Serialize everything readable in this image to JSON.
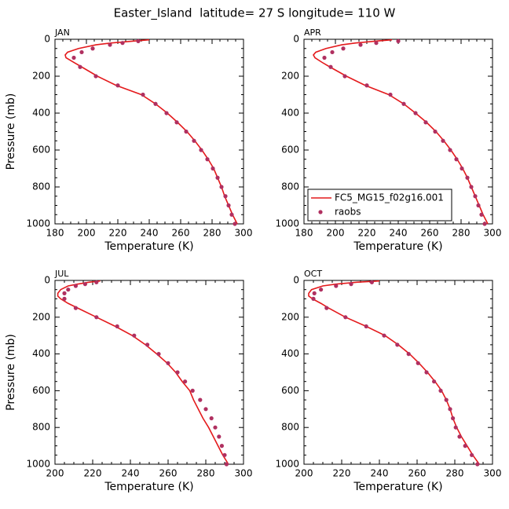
{
  "title": "Easter_Island  latitude= 27 S longitude= 110 W",
  "chart_data": [
    {
      "type": "line",
      "label": "JAN",
      "xlabel": "Temperature (K)",
      "ylabel": "Pressure (mb)",
      "xlim": [
        180,
        300
      ],
      "xticks": [
        180,
        200,
        220,
        240,
        260,
        280,
        300
      ],
      "ylim": [
        0,
        1000
      ],
      "y_reversed": true,
      "yticks": [
        0,
        200,
        400,
        600,
        800,
        1000
      ],
      "series": [
        {
          "color": "#e41a1c",
          "style": "line",
          "x": [
            240,
            230,
            216,
            206,
            195,
            188,
            186.5,
            187,
            192,
            197,
            207,
            219,
            235,
            244,
            251.5,
            258,
            264,
            269,
            273.5,
            277.5,
            281,
            283.5,
            286,
            288,
            290.5,
            293,
            296
          ],
          "y": [
            3,
            10,
            20,
            30,
            50,
            70,
            85,
            100,
            125,
            150,
            200,
            250,
            300,
            350,
            400,
            450,
            500,
            550,
            600,
            650,
            700,
            750,
            800,
            850,
            900,
            950,
            1000
          ]
        },
        {
          "color": "#b03060",
          "style": "markers",
          "x": [
            233,
            223,
            215,
            204,
            197,
            192,
            196,
            206,
            220,
            236,
            244,
            251,
            257.5,
            263.5,
            268.5,
            273,
            277,
            280.5,
            283.5,
            286,
            288.5,
            290.5,
            292.5,
            294.5
          ],
          "y": [
            10,
            20,
            30,
            50,
            70,
            100,
            150,
            200,
            250,
            300,
            350,
            400,
            450,
            500,
            550,
            600,
            650,
            700,
            750,
            800,
            850,
            900,
            950,
            1000
          ]
        }
      ]
    },
    {
      "type": "line",
      "label": "APR",
      "xlabel": "Temperature (K)",
      "xlim": [
        180,
        300
      ],
      "xticks": [
        180,
        200,
        220,
        240,
        260,
        280,
        300
      ],
      "ylim": [
        0,
        1000
      ],
      "y_reversed": true,
      "yticks": [
        0,
        200,
        400,
        600,
        800,
        1000
      ],
      "legend": "lower left",
      "series": [
        {
          "name": "FC5_MG15_f02g16.001",
          "color": "#e41a1c",
          "style": "line",
          "x": [
            236,
            226,
            213,
            204,
            194,
            187.5,
            186,
            187,
            191.5,
            196.5,
            207,
            219,
            234,
            243.5,
            251,
            258,
            264,
            269,
            273.5,
            277.5,
            281,
            284,
            286.5,
            289,
            291.5,
            294,
            297
          ],
          "y": [
            3,
            10,
            20,
            30,
            50,
            70,
            85,
            100,
            125,
            150,
            200,
            250,
            300,
            350,
            400,
            450,
            500,
            550,
            600,
            650,
            700,
            750,
            800,
            850,
            900,
            950,
            1000
          ]
        },
        {
          "name": "raobs",
          "color": "#b03060",
          "style": "markers",
          "x": [
            240,
            226,
            216,
            205,
            198,
            193,
            197,
            206,
            220,
            235,
            243.5,
            251,
            257.5,
            263.5,
            268.5,
            273,
            277,
            280.5,
            284,
            286.5,
            289,
            291,
            293,
            295
          ],
          "y": [
            10,
            20,
            30,
            50,
            70,
            100,
            150,
            200,
            250,
            300,
            350,
            400,
            450,
            500,
            550,
            600,
            650,
            700,
            750,
            800,
            850,
            900,
            950,
            1000
          ]
        }
      ]
    },
    {
      "type": "line",
      "label": "JUL",
      "xlabel": "Temperature (K)",
      "ylabel": "Pressure (mb)",
      "xlim": [
        200,
        300
      ],
      "xticks": [
        200,
        220,
        240,
        260,
        280,
        300
      ],
      "ylim": [
        0,
        1000
      ],
      "y_reversed": true,
      "yticks": [
        0,
        200,
        400,
        600,
        800,
        1000
      ],
      "series": [
        {
          "color": "#e41a1c",
          "style": "line",
          "x": [
            224,
            218,
            212,
            207,
            203,
            201.5,
            201.5,
            203,
            207,
            212,
            222,
            232,
            241,
            248,
            254,
            259.5,
            264,
            267.5,
            271.5,
            273.5,
            276,
            278.5,
            281.5,
            284,
            286.5,
            289,
            292
          ],
          "y": [
            3,
            10,
            20,
            30,
            50,
            70,
            85,
            100,
            125,
            150,
            200,
            250,
            300,
            350,
            400,
            450,
            500,
            550,
            600,
            650,
            700,
            750,
            800,
            850,
            900,
            950,
            1000
          ]
        },
        {
          "color": "#b03060",
          "style": "markers",
          "x": [
            222,
            216,
            211,
            207,
            205,
            205,
            211,
            222,
            233,
            242,
            249,
            255,
            260,
            265,
            269,
            273,
            277,
            280,
            283,
            285,
            287,
            288.5,
            290,
            291
          ],
          "y": [
            10,
            20,
            30,
            50,
            70,
            100,
            150,
            200,
            250,
            300,
            350,
            400,
            450,
            500,
            550,
            600,
            650,
            700,
            750,
            800,
            850,
            900,
            950,
            1000
          ]
        }
      ]
    },
    {
      "type": "line",
      "label": "OCT",
      "xlabel": "Temperature (K)",
      "xlim": [
        200,
        300
      ],
      "xticks": [
        200,
        220,
        240,
        260,
        280,
        300
      ],
      "ylim": [
        0,
        1000
      ],
      "y_reversed": true,
      "yticks": [
        0,
        200,
        400,
        600,
        800,
        1000
      ],
      "series": [
        {
          "color": "#e41a1c",
          "style": "line",
          "x": [
            240,
            228,
            217,
            210,
            204,
            202.5,
            202.5,
            204.5,
            209,
            213,
            222,
            233,
            243,
            250,
            256,
            261,
            265.5,
            269.5,
            273,
            275.5,
            277.5,
            279,
            281,
            283.5,
            286.5,
            289.5,
            293
          ],
          "y": [
            3,
            10,
            20,
            30,
            50,
            70,
            85,
            100,
            125,
            150,
            200,
            250,
            300,
            350,
            400,
            450,
            500,
            550,
            600,
            650,
            700,
            750,
            800,
            850,
            900,
            950,
            1000
          ]
        },
        {
          "color": "#b03060",
          "style": "markers",
          "x": [
            236,
            225,
            217,
            209,
            205.5,
            205,
            212,
            222,
            233,
            242.5,
            249.5,
            255.5,
            260.5,
            265,
            269,
            272.5,
            275.5,
            277.5,
            279,
            280.5,
            282.5,
            285.5,
            289,
            292
          ],
          "y": [
            10,
            20,
            30,
            50,
            70,
            100,
            150,
            200,
            250,
            300,
            350,
            400,
            450,
            500,
            550,
            600,
            650,
            700,
            750,
            800,
            850,
            900,
            950,
            1000
          ]
        }
      ]
    }
  ]
}
